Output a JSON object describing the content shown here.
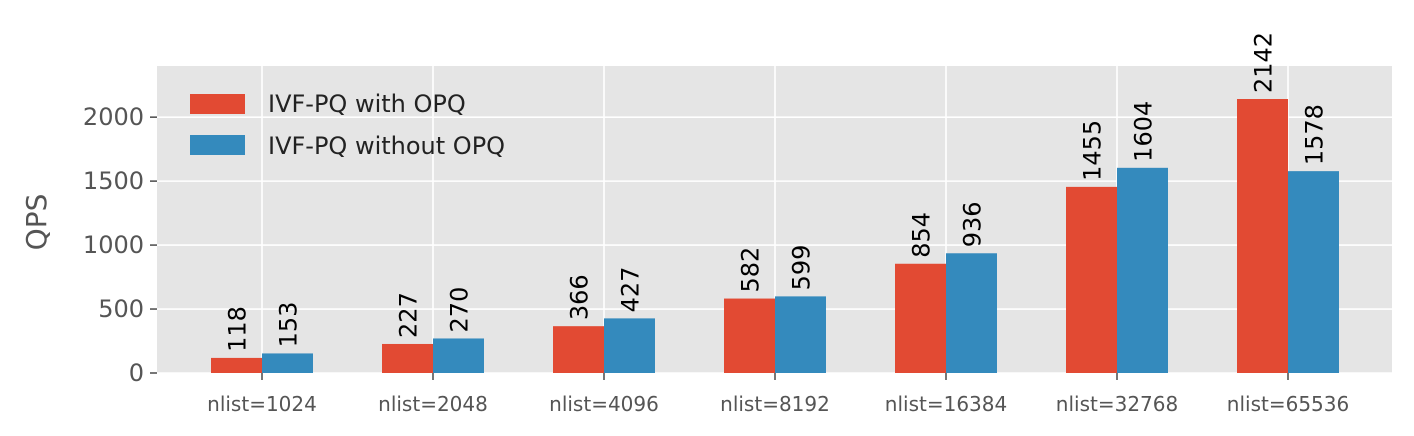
{
  "chart_data": {
    "type": "bar",
    "title": "",
    "xlabel": "",
    "ylabel": "QPS",
    "ylim": [
      0,
      2400
    ],
    "yticks": [
      0,
      500,
      1000,
      1500,
      2000
    ],
    "categories": [
      "nlist=1024",
      "nlist=2048",
      "nlist=4096",
      "nlist=8192",
      "nlist=16384",
      "nlist=32768",
      "nlist=65536"
    ],
    "series": [
      {
        "name": "IVF-PQ with OPQ",
        "color": "#e24a33",
        "values": [
          118,
          227,
          366,
          582,
          854,
          1455,
          2142
        ]
      },
      {
        "name": "IVF-PQ without OPQ",
        "color": "#348abd",
        "values": [
          153,
          270,
          427,
          599,
          936,
          1604,
          1578
        ]
      }
    ],
    "grid": true,
    "legend_position": "top-left",
    "background": "#e5e5e5"
  }
}
